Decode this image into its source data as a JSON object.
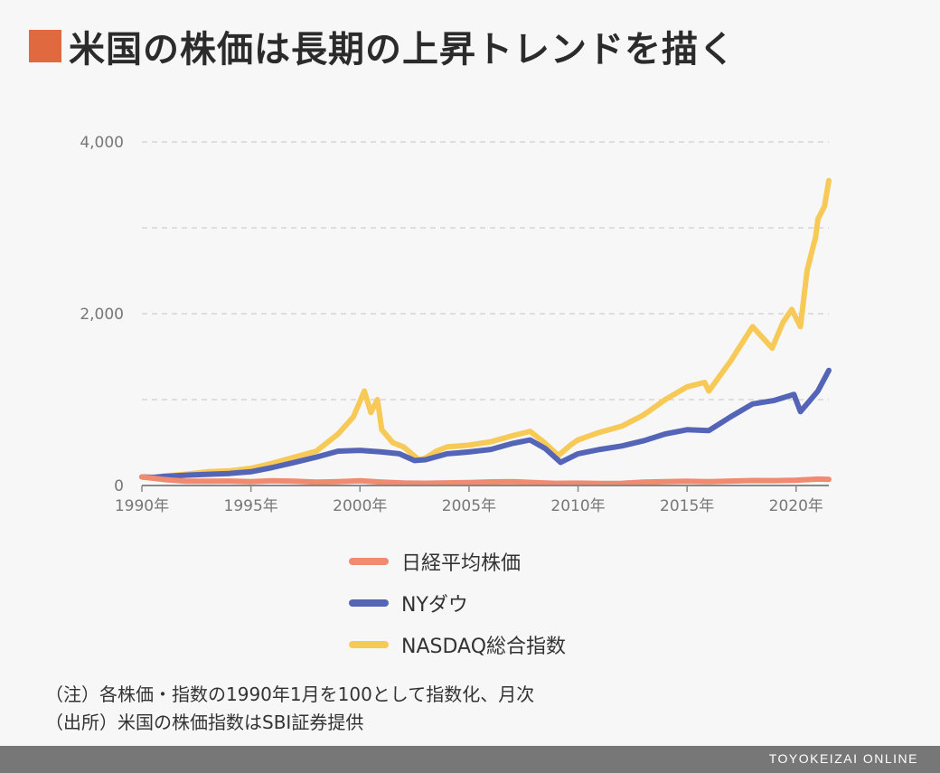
{
  "title": "米国の株価は長期の上昇トレンドを描く",
  "colors": {
    "accent": "#e0693f",
    "nikkei": "#f08a70",
    "nydow": "#5465b8",
    "nasdaq": "#f7c956",
    "grid": "#cfcfcf",
    "axis": "#888888"
  },
  "chart_data": {
    "type": "line",
    "title": "米国の株価は長期の上昇トレンドを描く",
    "x_unit": "year",
    "x_tick_labels": [
      "1990年",
      "1995年",
      "2000年",
      "2005年",
      "2010年",
      "2015年",
      "2020年"
    ],
    "x_tick_values": [
      1990,
      1995,
      2000,
      2005,
      2010,
      2015,
      2020
    ],
    "y_tick_labels": [
      "0",
      "2,000",
      "4,000"
    ],
    "y_tick_values": [
      0,
      2000,
      4000
    ],
    "y_gridlines": [
      0,
      1000,
      2000,
      3000,
      4000
    ],
    "xlim": [
      1990,
      2021.5
    ],
    "ylim": [
      0,
      4000
    ],
    "legend_position": "bottom",
    "series": [
      {
        "name": "日経平均株価",
        "color": "#f08a70",
        "points": [
          [
            1990,
            100
          ],
          [
            1990.5,
            85
          ],
          [
            1991,
            70
          ],
          [
            1992,
            50
          ],
          [
            1993,
            50
          ],
          [
            1994,
            52
          ],
          [
            1995,
            45
          ],
          [
            1996,
            55
          ],
          [
            1997,
            50
          ],
          [
            1998,
            40
          ],
          [
            1999,
            45
          ],
          [
            2000,
            55
          ],
          [
            2001,
            40
          ],
          [
            2002,
            28
          ],
          [
            2003,
            26
          ],
          [
            2004,
            30
          ],
          [
            2005,
            35
          ],
          [
            2006,
            42
          ],
          [
            2007,
            45
          ],
          [
            2008,
            35
          ],
          [
            2009,
            25
          ],
          [
            2010,
            27
          ],
          [
            2011,
            24
          ],
          [
            2012,
            25
          ],
          [
            2013,
            40
          ],
          [
            2014,
            45
          ],
          [
            2015,
            50
          ],
          [
            2016,
            45
          ],
          [
            2017,
            52
          ],
          [
            2018,
            58
          ],
          [
            2019,
            57
          ],
          [
            2020,
            62
          ],
          [
            2021,
            75
          ],
          [
            2021.5,
            72
          ]
        ]
      },
      {
        "name": "NYダウ",
        "color": "#5465b8",
        "points": [
          [
            1990,
            100
          ],
          [
            1990.5,
            95
          ],
          [
            1991,
            105
          ],
          [
            1992,
            120
          ],
          [
            1993,
            130
          ],
          [
            1994,
            140
          ],
          [
            1995,
            160
          ],
          [
            1996,
            210
          ],
          [
            1997,
            270
          ],
          [
            1998,
            330
          ],
          [
            1999,
            400
          ],
          [
            2000,
            410
          ],
          [
            2000.5,
            400
          ],
          [
            2001,
            390
          ],
          [
            2001.8,
            370
          ],
          [
            2002.5,
            290
          ],
          [
            2003,
            300
          ],
          [
            2004,
            370
          ],
          [
            2005,
            390
          ],
          [
            2006,
            420
          ],
          [
            2007,
            490
          ],
          [
            2007.8,
            530
          ],
          [
            2008.5,
            430
          ],
          [
            2009.2,
            270
          ],
          [
            2010,
            370
          ],
          [
            2011,
            420
          ],
          [
            2012,
            460
          ],
          [
            2013,
            520
          ],
          [
            2014,
            600
          ],
          [
            2015,
            650
          ],
          [
            2016,
            640
          ],
          [
            2017,
            800
          ],
          [
            2018,
            950
          ],
          [
            2019,
            990
          ],
          [
            2019.9,
            1060
          ],
          [
            2020.2,
            860
          ],
          [
            2020.6,
            980
          ],
          [
            2021,
            1100
          ],
          [
            2021.5,
            1340
          ]
        ]
      },
      {
        "name": "NASDAQ総合指数",
        "color": "#f7c956",
        "points": [
          [
            1990,
            100
          ],
          [
            1990.5,
            85
          ],
          [
            1991,
            110
          ],
          [
            1992,
            130
          ],
          [
            1993,
            160
          ],
          [
            1994,
            170
          ],
          [
            1995,
            200
          ],
          [
            1996,
            260
          ],
          [
            1997,
            330
          ],
          [
            1998,
            400
          ],
          [
            1999,
            600
          ],
          [
            1999.7,
            800
          ],
          [
            2000.2,
            1100
          ],
          [
            2000.5,
            850
          ],
          [
            2000.8,
            1000
          ],
          [
            2001,
            650
          ],
          [
            2001.5,
            500
          ],
          [
            2002,
            450
          ],
          [
            2002.7,
            300
          ],
          [
            2003,
            320
          ],
          [
            2003.5,
            400
          ],
          [
            2004,
            450
          ],
          [
            2005,
            470
          ],
          [
            2006,
            510
          ],
          [
            2007,
            580
          ],
          [
            2007.8,
            630
          ],
          [
            2008.5,
            490
          ],
          [
            2009.1,
            350
          ],
          [
            2009.7,
            480
          ],
          [
            2010,
            530
          ],
          [
            2011,
            620
          ],
          [
            2012,
            690
          ],
          [
            2013,
            820
          ],
          [
            2014,
            1000
          ],
          [
            2015,
            1150
          ],
          [
            2015.8,
            1200
          ],
          [
            2016,
            1100
          ],
          [
            2017,
            1450
          ],
          [
            2018,
            1850
          ],
          [
            2018.9,
            1600
          ],
          [
            2019.4,
            1900
          ],
          [
            2019.8,
            2050
          ],
          [
            2020.2,
            1850
          ],
          [
            2020.5,
            2500
          ],
          [
            2020.9,
            2900
          ],
          [
            2021,
            3100
          ],
          [
            2021.3,
            3250
          ],
          [
            2021.5,
            3550
          ]
        ]
      }
    ]
  },
  "legend": [
    {
      "label": "日経平均株価",
      "color": "#f08a70"
    },
    {
      "label": "NYダウ",
      "color": "#5465b8"
    },
    {
      "label": "NASDAQ総合指数",
      "color": "#f7c956"
    }
  ],
  "notes": {
    "note1": "（注）各株価・指数の1990年1月を100として指数化、月次",
    "note2": "（出所）米国の株価指数はSBI証券提供"
  },
  "footer": "TOYOKEIZAI ONLINE"
}
